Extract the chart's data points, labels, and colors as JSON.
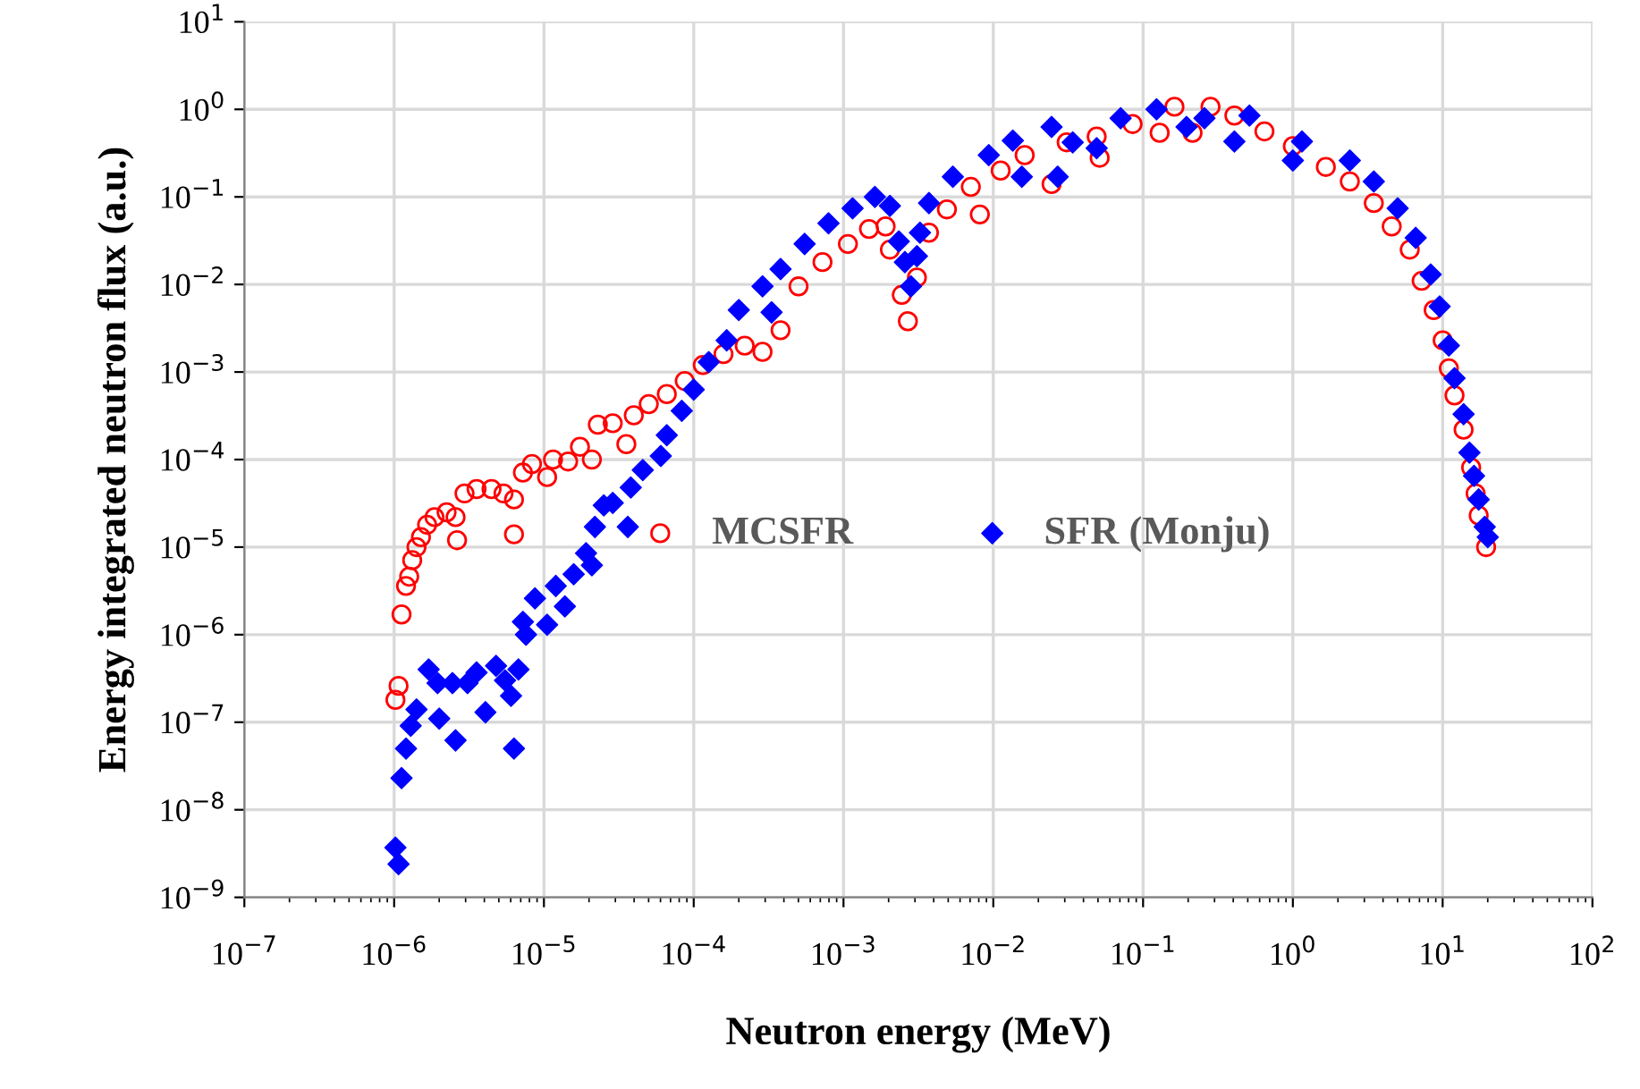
{
  "chart_data": {
    "type": "scatter",
    "xlabel": "Neutron energy (MeV)",
    "ylabel": "Energy integrated neutron flux (a.u.)",
    "log": "xy",
    "grid": true,
    "legend": "center",
    "xlim": [
      1e-07,
      100
    ],
    "ylim": [
      1e-09,
      10
    ],
    "xticks": [
      {
        "value": 1e-07,
        "label": "10$^{−7}$"
      },
      {
        "value": 1e-06,
        "label": "10$^{−6}$"
      },
      {
        "value": 1e-05,
        "label": "10$^{−5}$"
      },
      {
        "value": 0.0001,
        "label": "10$^{−4}$"
      },
      {
        "value": 0.001,
        "label": "10$^{−3}$"
      },
      {
        "value": 0.01,
        "label": "10$^{−2}$"
      },
      {
        "value": 0.1,
        "label": "10$^{−1}$"
      },
      {
        "value": 1,
        "label": "10$^{0}$"
      },
      {
        "value": 10,
        "label": "10$^{1}$"
      },
      {
        "value": 100,
        "label": "10$^{2}$"
      }
    ],
    "yticks": [
      {
        "value": 1e-09,
        "label": "10$^{−9}$"
      },
      {
        "value": 1e-08,
        "label": "10$^{−8}$"
      },
      {
        "value": 1e-07,
        "label": "10$^{−7}$"
      },
      {
        "value": 1e-06,
        "label": "10$^{−6}$"
      },
      {
        "value": 1e-05,
        "label": "10$^{−5}$"
      },
      {
        "value": 0.0001,
        "label": "10$^{−4}$"
      },
      {
        "value": 0.001,
        "label": "10$^{−3}$"
      },
      {
        "value": 0.01,
        "label": "10$^{−2}$"
      },
      {
        "value": 0.1,
        "label": "10$^{−1}$"
      },
      {
        "value": 1,
        "label": "10$^{0}$"
      },
      {
        "value": 10,
        "label": "10$^{1}$"
      }
    ],
    "series": [
      {
        "name": "MCSFR",
        "color": "#ff0000",
        "marker": "circle",
        "x": [
          1.02e-06,
          1.07e-06,
          1.12e-06,
          1.2e-06,
          1.26e-06,
          1.32e-06,
          1.41e-06,
          1.51e-06,
          1.66e-06,
          1.86e-06,
          2.24e-06,
          2.57e-06,
          2.63e-06,
          2.95e-06,
          3.55e-06,
          4.47e-06,
          5.37e-06,
          6.31e-06,
          6.31e-06,
          7.24e-06,
          8.32e-06,
          1.05e-05,
          1.15e-05,
          1.45e-05,
          1.74e-05,
          2.09e-05,
          2.29e-05,
          2.88e-05,
          3.55e-05,
          3.98e-05,
          5.01e-05,
          6.61e-05,
          8.71e-05,
          0.000115,
          0.000158,
          0.000219,
          0.000288,
          0.00038,
          0.000501,
          0.000724,
          0.00107,
          0.00148,
          0.00191,
          0.00204,
          0.00245,
          0.00269,
          0.00309,
          0.00372,
          0.0049,
          0.00708,
          0.00813,
          0.0112,
          0.0162,
          0.0245,
          0.0309,
          0.049,
          0.0513,
          0.0851,
          0.129,
          0.162,
          0.214,
          0.282,
          0.407,
          0.646,
          1,
          1.66,
          2.4,
          3.47,
          4.57,
          6.03,
          7.24,
          8.71,
          10,
          11,
          12,
          13.8,
          15.5,
          16.6,
          17.4,
          19.5
        ],
        "values": [
          1.8e-07,
          2.6e-07,
          1.7e-06,
          3.6e-06,
          4.6e-06,
          7.1e-06,
          1e-05,
          1.3e-05,
          1.8e-05,
          2.2e-05,
          2.5e-05,
          2.2e-05,
          1.2e-05,
          4.1e-05,
          4.6e-05,
          4.6e-05,
          4.1e-05,
          3.5e-05,
          1.4e-05,
          7.1e-05,
          8.9e-05,
          6.3e-05,
          0.0001,
          9.5e-05,
          0.00014,
          0.0001,
          0.00025,
          0.00026,
          0.00015,
          0.00032,
          0.00043,
          0.00056,
          0.00079,
          0.0012,
          0.0016,
          0.002,
          0.0017,
          0.003,
          0.0095,
          0.018,
          0.029,
          0.043,
          0.046,
          0.025,
          0.0076,
          0.0038,
          0.012,
          0.039,
          0.072,
          0.13,
          0.063,
          0.2,
          0.3,
          0.14,
          0.42,
          0.49,
          0.28,
          0.68,
          0.54,
          1.07,
          0.54,
          1.07,
          0.85,
          0.56,
          0.38,
          0.22,
          0.15,
          0.085,
          0.046,
          0.025,
          0.011,
          0.0051,
          0.0023,
          0.0011,
          0.00054,
          0.00022,
          8.1e-05,
          4.1e-05,
          2.3e-05,
          1e-05
        ]
      },
      {
        "name": "SFR (Monju)",
        "color": "#0000ff",
        "marker": "diamond",
        "x": [
          1.02e-06,
          1.07e-06,
          1.12e-06,
          1.2e-06,
          1.29e-06,
          1.41e-06,
          1.7e-06,
          1.95e-06,
          2e-06,
          2.45e-06,
          2.57e-06,
          3.09e-06,
          3.55e-06,
          4.07e-06,
          4.79e-06,
          5.5e-06,
          6.03e-06,
          6.31e-06,
          6.76e-06,
          7.24e-06,
          7.59e-06,
          8.71e-06,
          1.05e-05,
          1.2e-05,
          1.38e-05,
          1.58e-05,
          1.91e-05,
          2.09e-05,
          2.19e-05,
          2.51e-05,
          2.88e-05,
          3.63e-05,
          3.8e-05,
          4.57e-05,
          6.03e-05,
          6.61e-05,
          8.32e-05,
          0.0001,
          0.000126,
          0.000166,
          0.0002,
          0.000288,
          0.000331,
          0.00038,
          0.00055,
          0.000794,
          0.00115,
          0.00162,
          0.00204,
          0.00234,
          0.00257,
          0.00282,
          0.00309,
          0.00324,
          0.00372,
          0.00537,
          0.00933,
          0.0135,
          0.0155,
          0.0245,
          0.0269,
          0.0339,
          0.049,
          0.0708,
          0.123,
          0.195,
          0.257,
          0.407,
          0.513,
          1,
          1.15,
          2.4,
          3.47,
          5.01,
          6.61,
          8.32,
          9.55,
          11,
          12,
          13.8,
          15.1,
          16.2,
          17.4,
          19.1,
          20
        ],
        "values": [
          3.7e-09,
          2.4e-09,
          2.3e-08,
          5e-08,
          9.1e-08,
          1.4e-07,
          4e-07,
          2.8e-07,
          1.1e-07,
          2.8e-07,
          6.2e-08,
          2.8e-07,
          3.7e-07,
          1.3e-07,
          4.4e-07,
          3e-07,
          2e-07,
          5e-08,
          4e-07,
          1.4e-06,
          1e-06,
          2.6e-06,
          1.3e-06,
          3.6e-06,
          2.1e-06,
          4.9e-06,
          8.5e-06,
          6.2e-06,
          1.7e-05,
          3e-05,
          3.2e-05,
          1.7e-05,
          4.8e-05,
          7.6e-05,
          0.00011,
          0.00019,
          0.00036,
          0.00063,
          0.0013,
          0.0023,
          0.0051,
          0.0095,
          0.0048,
          0.015,
          0.029,
          0.05,
          0.074,
          0.1,
          0.079,
          0.031,
          0.018,
          0.0095,
          0.021,
          0.039,
          0.085,
          0.17,
          0.3,
          0.44,
          0.17,
          0.63,
          0.17,
          0.42,
          0.36,
          0.79,
          1.0,
          0.63,
          0.79,
          0.43,
          0.85,
          0.26,
          0.43,
          0.26,
          0.15,
          0.074,
          0.034,
          0.013,
          0.0056,
          0.002,
          0.00085,
          0.00033,
          0.00012,
          6.5e-05,
          3.5e-05,
          1.7e-05,
          1.3e-05
        ]
      }
    ]
  }
}
